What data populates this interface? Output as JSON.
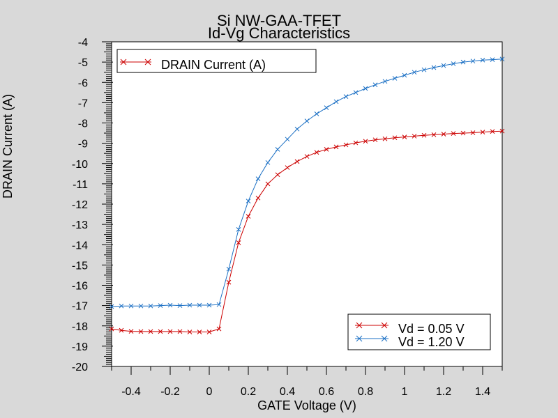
{
  "chart_data": {
    "type": "line",
    "title": "Si NW-GAA-TFET",
    "subtitle": "Id-Vg Characteristics",
    "xlabel": "GATE Voltage (V)",
    "ylabel": "DRAIN Current (A)",
    "xlim": [
      -0.5,
      1.5
    ],
    "ylim": [
      -20,
      -4
    ],
    "xticks": [
      -0.4,
      -0.2,
      0,
      0.2,
      0.4,
      0.6,
      0.8,
      1,
      1.2,
      1.4
    ],
    "xtick_labels": [
      "-0.4",
      "-0.2",
      "0",
      "0.2",
      "0.4",
      "0.6",
      "0.8",
      "1",
      "1.2",
      "1.4"
    ],
    "yticks": [
      -20,
      -19,
      -18,
      -17,
      -16,
      -15,
      -14,
      -13,
      -12,
      -11,
      -10,
      -9,
      -8,
      -7,
      -6,
      -5,
      -4
    ],
    "ytick_labels": [
      "-20",
      "-19",
      "-18",
      "-17",
      "-16",
      "-15",
      "-14",
      "-13",
      "-12",
      "-11",
      "-10",
      "-9",
      "-8",
      "-7",
      "-6",
      "-5",
      "-4"
    ],
    "grid": false,
    "legend_top": {
      "label": "DRAIN Current (A)",
      "color": "#cc0000",
      "placement": "top-left"
    },
    "legend_placement": "bottom-right",
    "series": [
      {
        "name": "Vd = 0.05 V",
        "color": "#cc0000",
        "x": [
          -0.5,
          -0.45,
          -0.4,
          -0.35,
          -0.3,
          -0.25,
          -0.2,
          -0.15,
          -0.1,
          -0.05,
          0,
          0.05,
          0.1,
          0.15,
          0.2,
          0.25,
          0.3,
          0.35,
          0.4,
          0.45,
          0.5,
          0.55,
          0.6,
          0.65,
          0.7,
          0.75,
          0.8,
          0.85,
          0.9,
          0.95,
          1,
          1.05,
          1.1,
          1.15,
          1.2,
          1.25,
          1.3,
          1.35,
          1.4,
          1.45,
          1.5
        ],
        "y": [
          -18.15,
          -18.22,
          -18.27,
          -18.28,
          -18.28,
          -18.28,
          -18.28,
          -18.28,
          -18.3,
          -18.3,
          -18.3,
          -18.15,
          -15.85,
          -13.9,
          -12.6,
          -11.7,
          -11.0,
          -10.55,
          -10.2,
          -9.9,
          -9.65,
          -9.45,
          -9.3,
          -9.18,
          -9.08,
          -8.98,
          -8.9,
          -8.83,
          -8.78,
          -8.73,
          -8.69,
          -8.65,
          -8.61,
          -8.58,
          -8.55,
          -8.52,
          -8.5,
          -8.48,
          -8.45,
          -8.42,
          -8.4
        ]
      },
      {
        "name": "Vd = 1.20 V",
        "color": "#1a6fc4",
        "x": [
          -0.5,
          -0.45,
          -0.4,
          -0.35,
          -0.3,
          -0.25,
          -0.2,
          -0.15,
          -0.1,
          -0.05,
          0,
          0.05,
          0.1,
          0.15,
          0.2,
          0.25,
          0.3,
          0.35,
          0.4,
          0.45,
          0.5,
          0.55,
          0.6,
          0.65,
          0.7,
          0.75,
          0.8,
          0.85,
          0.9,
          0.95,
          1,
          1.05,
          1.1,
          1.15,
          1.2,
          1.25,
          1.3,
          1.35,
          1.4,
          1.45,
          1.5
        ],
        "y": [
          -17.05,
          -17.02,
          -17.02,
          -17.02,
          -17.02,
          -17.0,
          -16.98,
          -17.0,
          -16.98,
          -16.98,
          -16.98,
          -16.95,
          -15.2,
          -13.25,
          -11.85,
          -10.75,
          -9.95,
          -9.3,
          -8.8,
          -8.3,
          -7.9,
          -7.55,
          -7.25,
          -6.95,
          -6.7,
          -6.5,
          -6.3,
          -6.12,
          -5.95,
          -5.8,
          -5.65,
          -5.5,
          -5.38,
          -5.27,
          -5.17,
          -5.08,
          -5.0,
          -4.95,
          -4.9,
          -4.88,
          -4.85
        ]
      }
    ]
  }
}
